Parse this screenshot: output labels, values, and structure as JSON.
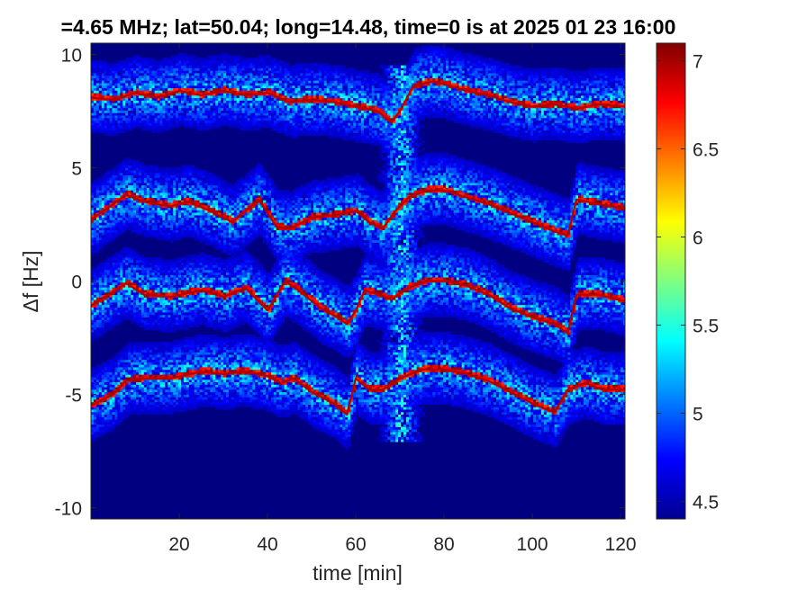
{
  "chart_data": {
    "type": "heatmap",
    "title": "=4.65 MHz;  lat=50.04; long=14.48, time=0 is at 2025 01 23 16:00",
    "xlabel": "time [min]",
    "ylabel": "Δf [Hz]",
    "xlim": [
      0,
      121
    ],
    "ylim": [
      -10.5,
      10.5
    ],
    "x_ticks": [
      20,
      40,
      60,
      80,
      100,
      120
    ],
    "y_ticks": [
      -10,
      -5,
      0,
      5,
      10
    ],
    "colorbar": {
      "colormap": "jet",
      "range": [
        4.4,
        7.1
      ],
      "ticks": [
        4.5,
        5,
        5.5,
        6,
        6.5,
        7
      ]
    },
    "background_level": 4.4,
    "traces": [
      {
        "base": 8.0,
        "points": [
          [
            0,
            8.1
          ],
          [
            5,
            8.0
          ],
          [
            10,
            8.3
          ],
          [
            15,
            8.1
          ],
          [
            20,
            8.4
          ],
          [
            25,
            8.2
          ],
          [
            30,
            8.4
          ],
          [
            35,
            8.2
          ],
          [
            40,
            8.3
          ],
          [
            45,
            7.9
          ],
          [
            50,
            8.0
          ],
          [
            55,
            7.9
          ],
          [
            60,
            7.7
          ],
          [
            65,
            7.5
          ],
          [
            68,
            7.0
          ],
          [
            70,
            7.5
          ],
          [
            73,
            8.6
          ],
          [
            77,
            8.8
          ],
          [
            80,
            8.7
          ],
          [
            85,
            8.4
          ],
          [
            90,
            8.2
          ],
          [
            95,
            7.9
          ],
          [
            100,
            7.7
          ],
          [
            105,
            7.8
          ],
          [
            110,
            7.6
          ],
          [
            115,
            7.8
          ],
          [
            121,
            7.7
          ]
        ]
      },
      {
        "base": 3.0,
        "points": [
          [
            0,
            2.7
          ],
          [
            5,
            3.4
          ],
          [
            8,
            3.8
          ],
          [
            12,
            3.5
          ],
          [
            18,
            3.3
          ],
          [
            22,
            3.5
          ],
          [
            27,
            3.1
          ],
          [
            32,
            2.6
          ],
          [
            38,
            3.6
          ],
          [
            42,
            2.4
          ],
          [
            45,
            2.3
          ],
          [
            50,
            2.8
          ],
          [
            55,
            2.9
          ],
          [
            60,
            3.1
          ],
          [
            63,
            2.6
          ],
          [
            66,
            2.3
          ],
          [
            69,
            3.1
          ],
          [
            72,
            3.7
          ],
          [
            76,
            4.0
          ],
          [
            80,
            4.0
          ],
          [
            85,
            3.7
          ],
          [
            90,
            3.4
          ],
          [
            95,
            3.0
          ],
          [
            100,
            2.6
          ],
          [
            105,
            2.2
          ],
          [
            108,
            2.0
          ],
          [
            110,
            3.6
          ],
          [
            115,
            3.4
          ],
          [
            121,
            3.2
          ]
        ]
      },
      {
        "base": -1.0,
        "points": [
          [
            0,
            -1.1
          ],
          [
            4,
            -0.6
          ],
          [
            8,
            -0.1
          ],
          [
            12,
            -0.6
          ],
          [
            18,
            -0.7
          ],
          [
            25,
            -0.4
          ],
          [
            30,
            -0.7
          ],
          [
            35,
            -0.3
          ],
          [
            40,
            -1.3
          ],
          [
            44,
            0.0
          ],
          [
            47,
            -0.4
          ],
          [
            52,
            -1.2
          ],
          [
            55,
            -1.5
          ],
          [
            58,
            -1.9
          ],
          [
            60,
            -1.3
          ],
          [
            62,
            -0.4
          ],
          [
            65,
            -0.6
          ],
          [
            68,
            -0.8
          ],
          [
            72,
            -0.3
          ],
          [
            76,
            0.0
          ],
          [
            80,
            0.0
          ],
          [
            85,
            -0.2
          ],
          [
            90,
            -0.6
          ],
          [
            95,
            -1.2
          ],
          [
            100,
            -1.6
          ],
          [
            105,
            -1.9
          ],
          [
            108,
            -2.3
          ],
          [
            110,
            -0.6
          ],
          [
            115,
            -0.6
          ],
          [
            121,
            -0.9
          ]
        ]
      },
      {
        "base": -5.0,
        "points": [
          [
            0,
            -5.5
          ],
          [
            5,
            -5.0
          ],
          [
            8,
            -4.4
          ],
          [
            12,
            -4.3
          ],
          [
            18,
            -4.3
          ],
          [
            25,
            -4.0
          ],
          [
            30,
            -4.1
          ],
          [
            35,
            -4.0
          ],
          [
            40,
            -4.2
          ],
          [
            43,
            -4.5
          ],
          [
            46,
            -4.3
          ],
          [
            50,
            -4.9
          ],
          [
            55,
            -5.4
          ],
          [
            58,
            -5.9
          ],
          [
            60,
            -4.3
          ],
          [
            63,
            -4.8
          ],
          [
            66,
            -4.8
          ],
          [
            70,
            -4.3
          ],
          [
            75,
            -3.9
          ],
          [
            80,
            -3.9
          ],
          [
            85,
            -4.1
          ],
          [
            90,
            -4.4
          ],
          [
            95,
            -4.9
          ],
          [
            100,
            -5.4
          ],
          [
            105,
            -5.8
          ],
          [
            108,
            -4.8
          ],
          [
            112,
            -4.5
          ],
          [
            116,
            -4.8
          ],
          [
            121,
            -4.8
          ]
        ]
      }
    ]
  }
}
